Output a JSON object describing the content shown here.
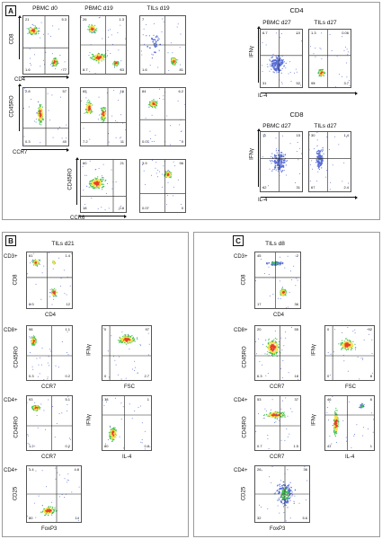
{
  "panels": {
    "a": "A",
    "b": "B",
    "c": "C"
  },
  "colors": {
    "dot": "#5a6fd6",
    "mid": "#3fbf4f",
    "hot": "#f5e14a",
    "core": "#e8402a"
  },
  "sectionA": {
    "col_titles": [
      "PBMC d0",
      "PBMC d19",
      "TILs d19"
    ],
    "row1": {
      "ylabel": "CD8",
      "xlabel": "CD4",
      "plots": [
        {
          "q": [
            "21",
            "5.3",
            "1.6",
            "77"
          ]
        },
        {
          "q": [
            "26",
            "1.3",
            "8.7",
            "63"
          ]
        },
        {
          "q": [
            "7",
            "",
            "1.6",
            "81"
          ]
        }
      ]
    },
    "row2": {
      "ylabel": "CD45RO",
      "xlabel": "CCR7",
      "plots": [
        {
          "q": [
            "2.8",
            "57",
            "0.3",
            "40"
          ]
        },
        {
          "q": [
            "65",
            "16",
            "7.2",
            "11"
          ]
        },
        {
          "q": [
            "84",
            "6.2",
            "0.07",
            "0"
          ]
        }
      ]
    },
    "row3": {
      "ylabel": "CD45RO",
      "xlabel": "CCR6",
      "plots": [
        {
          "q": [
            "60",
            "21",
            "18",
            "0.8"
          ]
        },
        {
          "q": [
            "3.9",
            "96",
            "0.07",
            "0"
          ]
        }
      ]
    },
    "right": {
      "cd4_title": "CD4",
      "cd8_title": "CD8",
      "col_titles": [
        "PBMC d27",
        "TILs d27"
      ],
      "ylabel": "IFNγ",
      "xlabel": "IL-4",
      "cd4_plots": [
        {
          "q": [
            "6.7",
            "10",
            "31",
            "52"
          ]
        },
        {
          "q": [
            "1.3",
            "0.06",
            "95",
            "3.7"
          ]
        }
      ],
      "cd8_plots": [
        {
          "q": [
            "11",
            "15",
            "42",
            "31"
          ]
        },
        {
          "q": [
            "30",
            "1.4",
            "67",
            "2.4"
          ]
        }
      ]
    }
  },
  "sectionB": {
    "title": "TILs d21",
    "rows": [
      {
        "gate": "CD3+",
        "plots": [
          {
            "ylabel": "CD8",
            "xlabel": "CD4",
            "q": [
              "61",
              "1.4",
              "6.3",
              "12"
            ]
          }
        ]
      },
      {
        "gate": "CD8+",
        "plots": [
          {
            "ylabel": "CD45RO",
            "xlabel": "CCR7",
            "q": [
              "98",
              "1.1",
              "0.3",
              "0.2"
            ]
          },
          {
            "ylabel": "IFNγ",
            "xlabel": "FSC",
            "q": [
              "0",
              "97",
              "0",
              "2.7"
            ]
          }
        ]
      },
      {
        "gate": "CD4+",
        "plots": [
          {
            "ylabel": "CD45RO",
            "xlabel": "CCR7",
            "q": [
              "93",
              "5.1",
              "1.2",
              "0.2"
            ]
          },
          {
            "ylabel": "IFNγ",
            "xlabel": "IL-4",
            "q": [
              "18",
              "1",
              "80",
              "0.8"
            ]
          }
        ]
      },
      {
        "gate": "CD4+",
        "plots": [
          {
            "ylabel": "CD25",
            "xlabel": "FoxP3",
            "q": [
              "1.4",
              "4.8",
              "80",
              "14"
            ]
          }
        ]
      }
    ]
  },
  "sectionC": {
    "title": "TILs d8",
    "rows": [
      {
        "gate": "CD3+",
        "plots": [
          {
            "ylabel": "CD8",
            "xlabel": "CD4",
            "q": [
              "45",
              "2",
              "17",
              "36"
            ]
          }
        ]
      },
      {
        "gate": "CD8+",
        "plots": [
          {
            "ylabel": "CD45RO",
            "xlabel": "CCR7",
            "q": [
              "20",
              "55",
              "6.3",
              "18"
            ]
          },
          {
            "ylabel": "IFNγ",
            "xlabel": "FSC",
            "q": [
              "0",
              "92",
              "0",
              "8"
            ]
          }
        ]
      },
      {
        "gate": "CD4+",
        "plots": [
          {
            "ylabel": "CD45RO",
            "xlabel": "CCR7",
            "q": [
              "53",
              "37",
              "0.7",
              "1.5"
            ]
          },
          {
            "ylabel": "IFNγ",
            "xlabel": "IL-4",
            "q": [
              "46",
              "6",
              "47",
              "1"
            ]
          }
        ]
      },
      {
        "gate": "CD4+",
        "plots": [
          {
            "ylabel": "CD25",
            "xlabel": "FoxP3",
            "q": [
              "26",
              "36",
              "32",
              "5.6"
            ]
          }
        ]
      }
    ]
  }
}
